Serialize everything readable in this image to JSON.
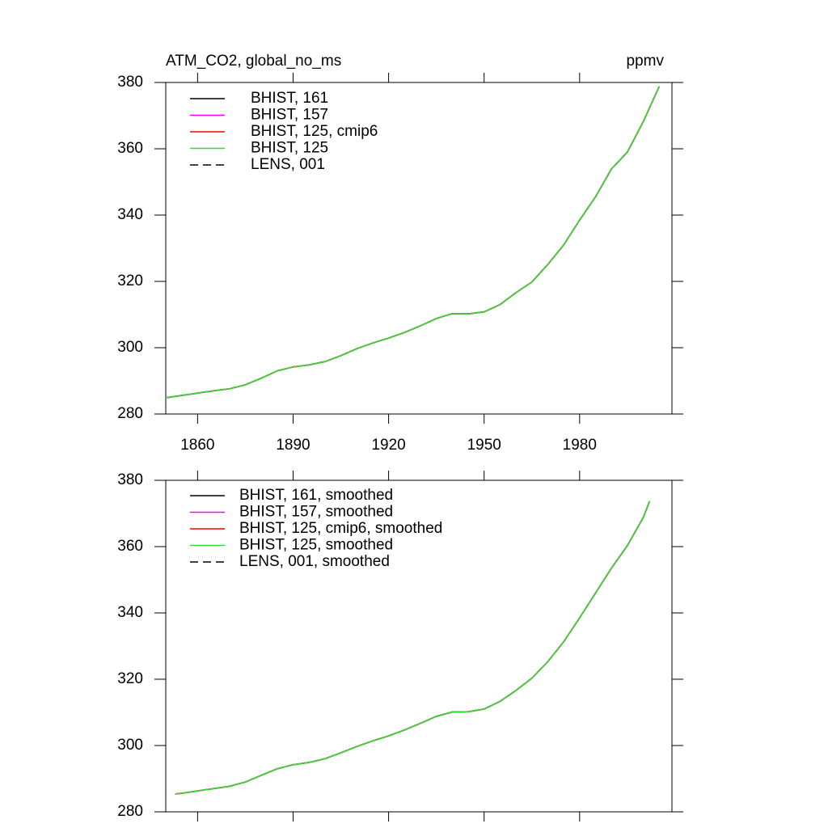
{
  "chart_data": [
    {
      "type": "line",
      "title": "ATM_CO2, global_no_ms",
      "units": "ppmv",
      "x": [
        1850,
        1855,
        1860,
        1865,
        1870,
        1875,
        1880,
        1885,
        1890,
        1895,
        1900,
        1905,
        1910,
        1915,
        1920,
        1925,
        1930,
        1935,
        1940,
        1945,
        1950,
        1955,
        1960,
        1965,
        1970,
        1975,
        1980,
        1985,
        1990,
        1995,
        2000,
        2005
      ],
      "series": [
        {
          "name": "BHIST, 161",
          "color": "#000000",
          "dashed": false,
          "values": [
            284.9,
            285.6,
            286.3,
            287.0,
            287.6,
            288.8,
            290.8,
            293.0,
            294.2,
            294.8,
            295.8,
            297.6,
            299.7,
            301.4,
            302.9,
            304.6,
            306.6,
            308.8,
            310.3,
            310.2,
            310.8,
            313.0,
            316.6,
            319.8,
            325.1,
            331.0,
            338.5,
            345.5,
            353.9,
            359.0,
            368.2,
            378.8
          ]
        },
        {
          "name": "BHIST, 157",
          "color": "#ff00ff",
          "dashed": false,
          "values": [
            284.9,
            285.6,
            286.3,
            287.0,
            287.6,
            288.8,
            290.8,
            293.0,
            294.2,
            294.8,
            295.8,
            297.6,
            299.7,
            301.4,
            302.9,
            304.6,
            306.6,
            308.8,
            310.3,
            310.2,
            310.8,
            313.0,
            316.6,
            319.8,
            325.1,
            331.0,
            338.5,
            345.5,
            353.9,
            359.0,
            368.2,
            378.8
          ]
        },
        {
          "name": "BHIST, 125, cmip6",
          "color": "#ff0000",
          "dashed": false,
          "values": [
            284.9,
            285.6,
            286.3,
            287.0,
            287.6,
            288.8,
            290.8,
            293.0,
            294.2,
            294.8,
            295.8,
            297.6,
            299.7,
            301.4,
            302.9,
            304.6,
            306.6,
            308.8,
            310.3,
            310.2,
            310.8,
            313.0,
            316.6,
            319.8,
            325.1,
            331.0,
            338.5,
            345.5,
            353.9,
            359.0,
            368.2,
            378.8
          ]
        },
        {
          "name": "BHIST, 125",
          "color": "#33dd33",
          "dashed": false,
          "values": [
            284.9,
            285.6,
            286.3,
            287.0,
            287.6,
            288.8,
            290.8,
            293.0,
            294.2,
            294.8,
            295.8,
            297.6,
            299.7,
            301.4,
            302.9,
            304.6,
            306.6,
            308.8,
            310.3,
            310.2,
            310.8,
            313.0,
            316.6,
            319.8,
            325.1,
            331.0,
            338.5,
            345.5,
            353.9,
            359.0,
            368.2,
            378.8
          ]
        },
        {
          "name": "LENS, 001",
          "color": "#000000",
          "dashed": true,
          "values": [
            284.9,
            285.6,
            286.3,
            287.0,
            287.6,
            288.8,
            290.8,
            293.0,
            294.2,
            294.8,
            295.8,
            297.6,
            299.7,
            301.4,
            302.9,
            304.6,
            306.6,
            308.8,
            310.3,
            310.2,
            310.8,
            313.0,
            316.6,
            319.8,
            325.1,
            331.0,
            338.5,
            345.5,
            353.9,
            359.0,
            368.2,
            378.8
          ]
        }
      ],
      "xlim": [
        1850,
        2009
      ],
      "xticks": [
        1860,
        1890,
        1920,
        1950,
        1980
      ],
      "ylim": [
        280,
        380
      ],
      "yticks": [
        280,
        300,
        320,
        340,
        360,
        380
      ]
    },
    {
      "type": "line",
      "x": [
        1853,
        1855,
        1860,
        1865,
        1870,
        1875,
        1880,
        1885,
        1890,
        1895,
        1900,
        1905,
        1910,
        1915,
        1920,
        1925,
        1930,
        1935,
        1940,
        1945,
        1950,
        1955,
        1960,
        1965,
        1970,
        1975,
        1980,
        1985,
        1990,
        1995,
        2000,
        2002
      ],
      "series": [
        {
          "name": "BHIST, 161, smoothed",
          "color": "#000000",
          "dashed": false,
          "values": [
            285.4,
            285.6,
            286.3,
            287.0,
            287.7,
            289.0,
            291.0,
            293.0,
            294.2,
            294.9,
            296.0,
            297.8,
            299.7,
            301.4,
            302.9,
            304.7,
            306.7,
            308.8,
            310.1,
            310.2,
            311.0,
            313.3,
            316.6,
            320.3,
            325.3,
            331.3,
            338.5,
            346.0,
            353.5,
            360.3,
            368.8,
            373.7
          ]
        },
        {
          "name": "BHIST, 157, smoothed",
          "color": "#ff00ff",
          "dashed": false,
          "values": [
            285.4,
            285.6,
            286.3,
            287.0,
            287.7,
            289.0,
            291.0,
            293.0,
            294.2,
            294.9,
            296.0,
            297.8,
            299.7,
            301.4,
            302.9,
            304.7,
            306.7,
            308.8,
            310.1,
            310.2,
            311.0,
            313.3,
            316.6,
            320.3,
            325.3,
            331.3,
            338.5,
            346.0,
            353.5,
            360.3,
            368.8,
            373.7
          ]
        },
        {
          "name": "BHIST, 125, cmip6, smoothed",
          "color": "#ff0000",
          "dashed": false,
          "values": [
            285.4,
            285.6,
            286.3,
            287.0,
            287.7,
            289.0,
            291.0,
            293.0,
            294.2,
            294.9,
            296.0,
            297.8,
            299.7,
            301.4,
            302.9,
            304.7,
            306.7,
            308.8,
            310.1,
            310.2,
            311.0,
            313.3,
            316.6,
            320.3,
            325.3,
            331.3,
            338.5,
            346.0,
            353.5,
            360.3,
            368.8,
            373.7
          ]
        },
        {
          "name": "BHIST, 125, smoothed",
          "color": "#33dd33",
          "dashed": false,
          "values": [
            285.4,
            285.6,
            286.3,
            287.0,
            287.7,
            289.0,
            291.0,
            293.0,
            294.2,
            294.9,
            296.0,
            297.8,
            299.7,
            301.4,
            302.9,
            304.7,
            306.7,
            308.8,
            310.1,
            310.2,
            311.0,
            313.3,
            316.6,
            320.3,
            325.3,
            331.3,
            338.5,
            346.0,
            353.5,
            360.3,
            368.8,
            373.7
          ]
        },
        {
          "name": "LENS, 001, smoothed",
          "color": "#000000",
          "dashed": true,
          "values": [
            285.4,
            285.6,
            286.3,
            287.0,
            287.7,
            289.0,
            291.0,
            293.0,
            294.2,
            294.9,
            296.0,
            297.8,
            299.7,
            301.4,
            302.9,
            304.7,
            306.7,
            308.8,
            310.1,
            310.2,
            311.0,
            313.3,
            316.6,
            320.3,
            325.3,
            331.3,
            338.5,
            346.0,
            353.5,
            360.3,
            368.8,
            373.7
          ]
        }
      ],
      "xlim": [
        1850,
        2009
      ],
      "xticks": [
        1860,
        1890,
        1920,
        1950,
        1980
      ],
      "ylim": [
        280,
        380
      ],
      "yticks": [
        280,
        300,
        320,
        340,
        360,
        380
      ]
    }
  ]
}
